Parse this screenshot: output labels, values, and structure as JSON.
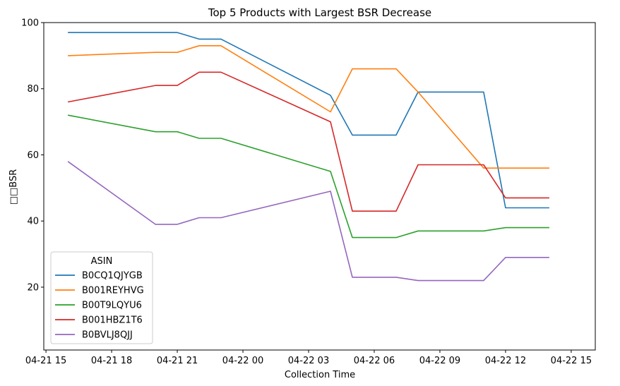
{
  "chart_data": {
    "type": "line",
    "title": "Top 5 Products with Largest BSR Decrease",
    "xlabel": "Collection Time",
    "ylabel": "□□BSR",
    "x_tick_labels": [
      "04-21 15",
      "04-21 18",
      "04-21 21",
      "04-22 00",
      "04-22 03",
      "04-22 06",
      "04-22 09",
      "04-22 12",
      "04-22 15"
    ],
    "x_tick_hours": [
      15,
      18,
      21,
      24,
      27,
      30,
      33,
      36,
      39
    ],
    "y_ticks": [
      20,
      40,
      60,
      80,
      100
    ],
    "xlim_hours": [
      14.9,
      40.1
    ],
    "ylim": [
      1,
      100
    ],
    "x_hours": [
      16,
      20,
      21,
      22,
      23,
      28,
      29,
      31,
      32,
      35,
      36,
      38
    ],
    "legend_title": "ASIN",
    "legend_position": "lower-left",
    "grid": false,
    "series": [
      {
        "name": "B0CQ1QJYGB",
        "color": "#1f77b4",
        "values": [
          97,
          97,
          97,
          95,
          95,
          78,
          66,
          66,
          79,
          79,
          44,
          44
        ]
      },
      {
        "name": "B001REYHVG",
        "color": "#ff7f0e",
        "values": [
          90,
          91,
          91,
          93,
          93,
          73,
          86,
          86,
          79,
          56,
          56,
          56
        ]
      },
      {
        "name": "B00T9LQYU6",
        "color": "#2ca02c",
        "values": [
          72,
          67,
          67,
          65,
          65,
          55,
          35,
          35,
          37,
          37,
          38,
          38
        ]
      },
      {
        "name": "B001HBZ1T6",
        "color": "#d62728",
        "values": [
          76,
          81,
          81,
          85,
          85,
          70,
          43,
          43,
          57,
          57,
          47,
          47
        ]
      },
      {
        "name": "B0BVLJ8QJJ",
        "color": "#9467bd",
        "values": [
          58,
          39,
          39,
          41,
          41,
          49,
          23,
          23,
          22,
          22,
          29,
          29
        ]
      }
    ]
  }
}
